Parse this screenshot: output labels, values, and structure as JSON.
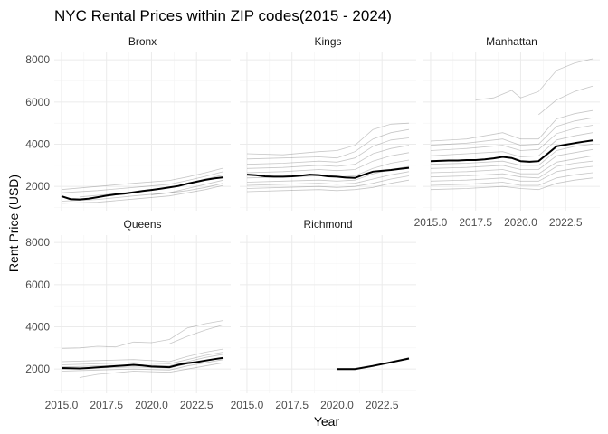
{
  "chart_data": {
    "type": "line",
    "title": "NYC Rental Prices within ZIP codes(2015 - 2024)",
    "xlabel": "Year",
    "ylabel": "Rent Price (USD)",
    "xlim": [
      2014.6,
      2024.4
    ],
    "ylim": [
      850,
      8350
    ],
    "x_ticks": [
      2015,
      2017.5,
      2020,
      2022.5
    ],
    "x_tick_labels": [
      "2015.0",
      "2017.5",
      "2020.0",
      "2022.5"
    ],
    "y_ticks": [
      2000,
      4000,
      6000,
      8000
    ],
    "y_tick_labels": [
      "2000",
      "4000",
      "6000",
      "8000"
    ],
    "grid": true,
    "layout": "facets-3x2",
    "panels": [
      {
        "name": "Bronx",
        "mean": {
          "x": [
            2015,
            2015.5,
            2016,
            2016.5,
            2017,
            2017.5,
            2018,
            2018.5,
            2019,
            2019.5,
            2020,
            2020.5,
            2021,
            2021.5,
            2022,
            2022.5,
            2023,
            2023.5,
            2024
          ],
          "y": [
            1530,
            1400,
            1380,
            1420,
            1490,
            1560,
            1620,
            1660,
            1720,
            1780,
            1830,
            1890,
            1950,
            2020,
            2130,
            2220,
            2310,
            2380,
            2430
          ]
        },
        "zips": [
          {
            "x": [
              2015,
              2017,
              2019,
              2021,
              2022,
              2023,
              2024
            ],
            "y": [
              1850,
              2000,
              2150,
              2280,
              2450,
              2650,
              2870
            ]
          },
          {
            "x": [
              2015,
              2017,
              2019,
              2021,
              2022,
              2023,
              2024
            ],
            "y": [
              1700,
              1800,
              1950,
              2100,
              2280,
              2480,
              2700
            ]
          },
          {
            "x": [
              2016,
              2018,
              2020,
              2021,
              2022,
              2023,
              2024
            ],
            "y": [
              1500,
              1650,
              1850,
              1950,
              2150,
              2350,
              2550
            ]
          },
          {
            "x": [
              2015,
              2017,
              2019,
              2021,
              2022,
              2023,
              2024
            ],
            "y": [
              1300,
              1380,
              1550,
              1700,
              1900,
              2100,
              2300
            ]
          },
          {
            "x": [
              2015,
              2017,
              2019,
              2021,
              2022,
              2023,
              2024
            ],
            "y": [
              1200,
              1250,
              1400,
              1550,
              1700,
              1850,
              2050
            ]
          },
          {
            "x": [
              2020,
              2021,
              2022,
              2023,
              2024
            ],
            "y": [
              1600,
              1700,
              1800,
              1950,
              2150
            ]
          }
        ]
      },
      {
        "name": "Kings",
        "mean": {
          "x": [
            2015,
            2015.5,
            2016,
            2016.5,
            2017,
            2017.5,
            2018,
            2018.5,
            2019,
            2019.5,
            2020,
            2020.5,
            2021,
            2021.5,
            2022,
            2022.5,
            2023,
            2023.5,
            2024
          ],
          "y": [
            2560,
            2530,
            2480,
            2460,
            2460,
            2480,
            2510,
            2560,
            2540,
            2480,
            2460,
            2420,
            2400,
            2560,
            2700,
            2740,
            2780,
            2830,
            2880
          ]
        },
        "zips": [
          {
            "x": [
              2015,
              2017,
              2019,
              2020,
              2021,
              2022,
              2023,
              2024
            ],
            "y": [
              3550,
              3500,
              3650,
              3700,
              3950,
              4700,
              4950,
              5000
            ]
          },
          {
            "x": [
              2015,
              2017,
              2019,
              2020,
              2021,
              2022,
              2023,
              2024
            ],
            "y": [
              3300,
              3350,
              3400,
              3350,
              3650,
              4250,
              4550,
              4700
            ]
          },
          {
            "x": [
              2015,
              2017,
              2019,
              2020,
              2021,
              2022,
              2023,
              2024
            ],
            "y": [
              3050,
              3100,
              3200,
              3150,
              3350,
              3900,
              4200,
              4300
            ]
          },
          {
            "x": [
              2015,
              2017,
              2019,
              2020,
              2021,
              2022,
              2023,
              2024
            ],
            "y": [
              2850,
              2900,
              3000,
              2950,
              3050,
              3550,
              3800,
              3950
            ]
          },
          {
            "x": [
              2015,
              2017,
              2019,
              2020,
              2021,
              2022,
              2023,
              2024
            ],
            "y": [
              2650,
              2700,
              2800,
              2750,
              2800,
              3200,
              3450,
              3600
            ]
          },
          {
            "x": [
              2015,
              2017,
              2019,
              2020,
              2021,
              2022,
              2023,
              2024
            ],
            "y": [
              2400,
              2450,
              2500,
              2450,
              2500,
              2850,
              3100,
              3250
            ]
          },
          {
            "x": [
              2015,
              2017,
              2019,
              2020,
              2021,
              2022,
              2023,
              2024
            ],
            "y": [
              2200,
              2250,
              2300,
              2250,
              2300,
              2600,
              2800,
              2950
            ]
          },
          {
            "x": [
              2015,
              2017,
              2019,
              2020,
              2021,
              2022,
              2023,
              2024
            ],
            "y": [
              2050,
              2100,
              2150,
              2100,
              2150,
              2350,
              2550,
              2700
            ]
          },
          {
            "x": [
              2015,
              2017,
              2019,
              2020,
              2021,
              2022,
              2023,
              2024
            ],
            "y": [
              1900,
              1950,
              2000,
              1950,
              2000,
              2150,
              2350,
              2500
            ]
          },
          {
            "x": [
              2015,
              2017,
              2019,
              2020,
              2021,
              2022,
              2023,
              2024
            ],
            "y": [
              1750,
              1800,
              1850,
              1800,
              1850,
              1950,
              2150,
              2300
            ]
          }
        ]
      },
      {
        "name": "Manhattan",
        "mean": {
          "x": [
            2015,
            2015.5,
            2016,
            2016.5,
            2017,
            2017.5,
            2018,
            2018.5,
            2019,
            2019.5,
            2020,
            2020.5,
            2021,
            2021.5,
            2022,
            2022.5,
            2023,
            2023.5,
            2024
          ],
          "y": [
            3200,
            3210,
            3230,
            3230,
            3250,
            3250,
            3280,
            3330,
            3400,
            3350,
            3200,
            3170,
            3200,
            3550,
            3900,
            3980,
            4050,
            4120,
            4180
          ]
        },
        "zips": [
          {
            "x": [
              2017.5,
              2018.5,
              2019.5,
              2020,
              2021,
              2022,
              2023,
              2024
            ],
            "y": [
              6100,
              6200,
              6550,
              6200,
              6500,
              7500,
              7850,
              8050
            ]
          },
          {
            "x": [
              2021,
              2022,
              2023,
              2024
            ],
            "y": [
              5400,
              6100,
              6500,
              6750
            ]
          },
          {
            "x": [
              2015,
              2017,
              2019,
              2020,
              2021,
              2022,
              2023,
              2024
            ],
            "y": [
              4150,
              4250,
              4550,
              4250,
              4250,
              5200,
              5450,
              5600
            ]
          },
          {
            "x": [
              2015,
              2017,
              2019,
              2020,
              2021,
              2022,
              2023,
              2024
            ],
            "y": [
              3950,
              4050,
              4250,
              3950,
              4000,
              4850,
              5100,
              5250
            ]
          },
          {
            "x": [
              2015,
              2017,
              2019,
              2020,
              2021,
              2022,
              2023,
              2024
            ],
            "y": [
              3700,
              3800,
              3950,
              3700,
              3750,
              4500,
              4750,
              4900
            ]
          },
          {
            "x": [
              2015,
              2017,
              2019,
              2020,
              2021,
              2022,
              2023,
              2024
            ],
            "y": [
              3450,
              3550,
              3650,
              3400,
              3450,
              4200,
              4400,
              4550
            ]
          },
          {
            "x": [
              2015,
              2017,
              2019,
              2020,
              2021,
              2022,
              2023,
              2024
            ],
            "y": [
              3050,
              3100,
              3200,
              3000,
              3000,
              3700,
              3900,
              4000
            ]
          },
          {
            "x": [
              2015,
              2017,
              2019,
              2020,
              2021,
              2022,
              2023,
              2024
            ],
            "y": [
              2850,
              2900,
              3000,
              2800,
              2800,
              3450,
              3600,
              3750
            ]
          },
          {
            "x": [
              2015,
              2017,
              2019,
              2020,
              2021,
              2022,
              2023,
              2024
            ],
            "y": [
              2650,
              2700,
              2800,
              2600,
              2600,
              3150,
              3300,
              3450
            ]
          },
          {
            "x": [
              2015,
              2017,
              2019,
              2020,
              2021,
              2022,
              2023,
              2024
            ],
            "y": [
              2450,
              2500,
              2600,
              2450,
              2400,
              2950,
              3100,
              3200
            ]
          },
          {
            "x": [
              2015,
              2017,
              2019,
              2020,
              2021,
              2022,
              2023,
              2024
            ],
            "y": [
              2250,
              2300,
              2400,
              2250,
              2250,
              2700,
              2850,
              2950
            ]
          },
          {
            "x": [
              2015,
              2017,
              2019,
              2020,
              2021,
              2022,
              2023,
              2024
            ],
            "y": [
              2050,
              2100,
              2200,
              2050,
              2050,
              2400,
              2550,
              2650
            ]
          },
          {
            "x": [
              2015,
              2017,
              2019,
              2020,
              2021,
              2022,
              2023,
              2024
            ],
            "y": [
              1850,
              1900,
              2000,
              1900,
              1850,
              2150,
              2300,
              2400
            ]
          }
        ]
      },
      {
        "name": "Queens",
        "mean": {
          "x": [
            2015,
            2015.5,
            2016,
            2016.5,
            2017,
            2017.5,
            2018,
            2018.5,
            2019,
            2019.5,
            2020,
            2020.5,
            2021,
            2021.5,
            2022,
            2022.5,
            2023,
            2023.5,
            2024
          ],
          "y": [
            2050,
            2040,
            2030,
            2050,
            2080,
            2110,
            2140,
            2170,
            2200,
            2170,
            2120,
            2100,
            2090,
            2200,
            2280,
            2330,
            2400,
            2470,
            2530
          ]
        },
        "zips": [
          {
            "x": [
              2015,
              2016,
              2017,
              2018,
              2019,
              2020,
              2021,
              2022,
              2023,
              2024
            ],
            "y": [
              2980,
              3000,
              3080,
              3050,
              3280,
              3250,
              3400,
              3950,
              4150,
              4300
            ]
          },
          {
            "x": [
              2021,
              2022,
              2023,
              2024
            ],
            "y": [
              3200,
              3550,
              3850,
              4100
            ]
          },
          {
            "x": [
              2015,
              2017,
              2019,
              2021,
              2022,
              2023,
              2024
            ],
            "y": [
              2350,
              2400,
              2450,
              2350,
              2600,
              2800,
              2950
            ]
          },
          {
            "x": [
              2015,
              2017,
              2019,
              2021,
              2022,
              2023,
              2024
            ],
            "y": [
              2200,
              2250,
              2300,
              2250,
              2450,
              2650,
              2800
            ]
          },
          {
            "x": [
              2015,
              2017,
              2019,
              2021,
              2022,
              2023,
              2024
            ],
            "y": [
              2100,
              2150,
              2200,
              2150,
              2350,
              2550,
              2700
            ]
          },
          {
            "x": [
              2015,
              2017,
              2019,
              2021,
              2022,
              2023,
              2024
            ],
            "y": [
              2000,
              2050,
              2100,
              2050,
              2250,
              2400,
              2550
            ]
          },
          {
            "x": [
              2015,
              2017,
              2019,
              2021,
              2022,
              2023,
              2024
            ],
            "y": [
              1900,
              1950,
              2000,
              1950,
              2150,
              2300,
              2450
            ]
          },
          {
            "x": [
              2016,
              2017,
              2019,
              2021,
              2022,
              2023,
              2024
            ],
            "y": [
              1600,
              1750,
              1900,
              1850,
              2000,
              2150,
              2300
            ]
          }
        ]
      },
      {
        "name": "Richmond",
        "mean": {
          "x": [
            2020,
            2021,
            2022,
            2023,
            2024
          ],
          "y": [
            2000,
            2000,
            2150,
            2320,
            2500
          ]
        },
        "zips": [
          {
            "x": [
              2020,
              2021,
              2022,
              2023,
              2024
            ],
            "y": [
              2030,
              2030,
              2180,
              2350,
              2540
            ]
          },
          {
            "x": [
              2020,
              2021,
              2022,
              2023,
              2024
            ],
            "y": [
              1980,
              1980,
              2120,
              2300,
              2470
            ]
          }
        ]
      }
    ]
  }
}
